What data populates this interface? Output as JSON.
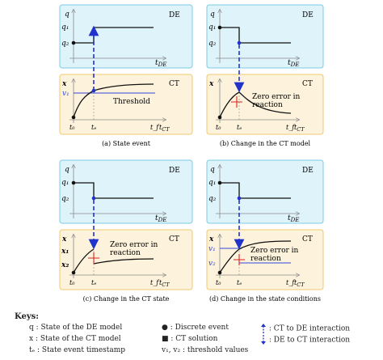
{
  "panels": [
    {
      "de_label": "DE",
      "ct_label": "CT",
      "caption": "(a) State event",
      "annotation": "Threshold"
    },
    {
      "de_label": "DE",
      "ct_label": "CT",
      "caption": "(b) Change in the CT model",
      "annotation_line1": "Zero error in",
      "annotation_line2": "reaction"
    },
    {
      "de_label": "DE",
      "ct_label": "CT",
      "caption": "(c) Change in the CT state",
      "annotation_line1": "Zero error in",
      "annotation_line2": "reaction"
    },
    {
      "de_label": "DE",
      "ct_label": "CT",
      "caption": "(d) Change in the state conditions",
      "annotation_line1": "Zero error in",
      "annotation_line2": "reaction"
    }
  ],
  "axis": {
    "q": "q",
    "q1": "q₁",
    "q2": "q₂",
    "t_de": "t",
    "t_de_sub": "DE",
    "x": "x",
    "x1": "x₁",
    "x2": "x₂",
    "v1": "v₁",
    "v2": "v₂",
    "t0": "t₀",
    "te": "tₑ",
    "tf": "t_f",
    "t_ct": "t",
    "t_ct_sub": "CT"
  },
  "keys": {
    "title": "Keys:",
    "q_desc": "q : State of the DE model",
    "x_desc": "x : State of the CT model",
    "te_desc": "tₑ : State event timestamp",
    "discrete_event": "● : Discrete event",
    "ct_solution": "■ : CT solution",
    "threshold_values": "v₁, v₂ : threshold values",
    "ct_to_de": ": CT to DE interaction",
    "de_to_ct": ": DE to CT interaction"
  },
  "colors": {
    "de_bg": "#dff3fa",
    "de_border": "#7ccbe6",
    "ct_bg": "#fdf3dc",
    "ct_border": "#f0c870",
    "arrow": "#2233cc",
    "threshold": "#3344dd",
    "error_marker": "#dd2222"
  }
}
